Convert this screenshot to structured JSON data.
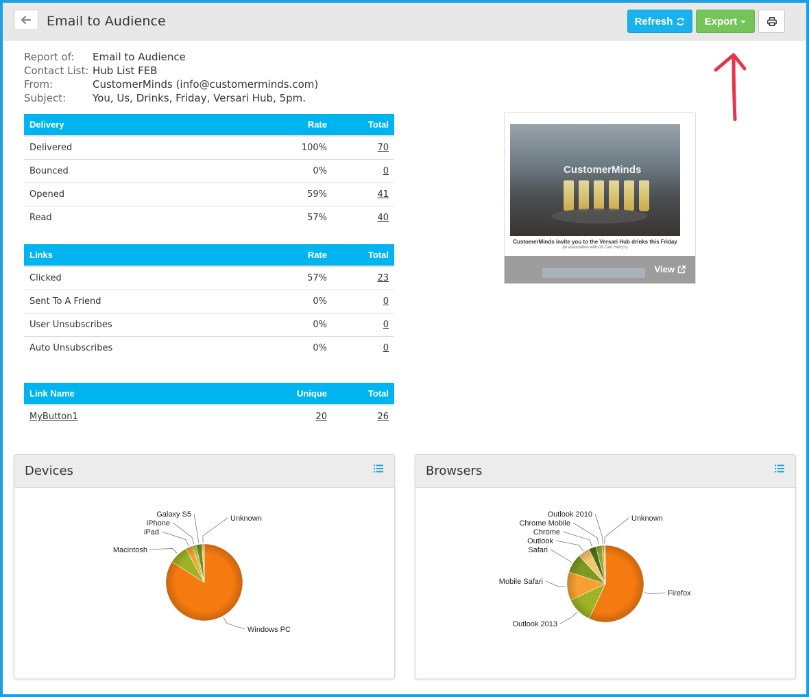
{
  "header": {
    "title": "Email to Audience",
    "refresh_label": "Refresh",
    "export_label": "Export"
  },
  "report": {
    "fields": [
      {
        "label": "Report of:",
        "value": "Email to Audience"
      },
      {
        "label": "Contact List:",
        "value": "Hub List FEB"
      },
      {
        "label": "From:",
        "value": "CustomerMinds (info@customerminds.com)"
      },
      {
        "label": "Subject:",
        "value": "You, Us, Drinks, Friday, Versari Hub, 5pm."
      }
    ]
  },
  "delivery_table": {
    "headers": [
      "Delivery",
      "Rate",
      "Total"
    ],
    "rows": [
      {
        "name": "Delivered",
        "rate": "100%",
        "total": "70"
      },
      {
        "name": "Bounced",
        "rate": "0%",
        "total": "0"
      },
      {
        "name": "Opened",
        "rate": "59%",
        "total": "41"
      },
      {
        "name": "Read",
        "rate": "57%",
        "total": "40"
      }
    ]
  },
  "links_table": {
    "headers": [
      "Links",
      "Rate",
      "Total"
    ],
    "rows": [
      {
        "name": "Clicked",
        "rate": "57%",
        "total": "23"
      },
      {
        "name": "Sent To A Friend",
        "rate": "0%",
        "total": "0"
      },
      {
        "name": "User Unsubscribes",
        "rate": "0%",
        "total": "0"
      },
      {
        "name": "Auto Unsubscribes",
        "rate": "0%",
        "total": "0"
      }
    ]
  },
  "linkname_table": {
    "headers": [
      "Link Name",
      "Unique",
      "Total"
    ],
    "rows": [
      {
        "name": "MyButton1",
        "unique": "20",
        "total": "26"
      }
    ]
  },
  "preview": {
    "brand": "CustomerMinds",
    "caption": "CustomerMinds invite you to the Versari Hub drinks this Friday",
    "subcaption": "(in association with Oli Cart Harry's)",
    "view_label": "View"
  },
  "panels": {
    "devices_title": "Devices",
    "browsers_title": "Browsers"
  },
  "chart_data": [
    {
      "type": "pie",
      "title": "Devices",
      "slices": [
        {
          "label": "Windows PC",
          "value": 84,
          "color": "#f57a10"
        },
        {
          "label": "Macintosh",
          "value": 8,
          "color": "#9db324"
        },
        {
          "label": "iPad",
          "value": 3,
          "color": "#f5a030"
        },
        {
          "label": "iPhone",
          "value": 1.5,
          "color": "#a8c43c"
        },
        {
          "label": "Galaxy S5",
          "value": 2.5,
          "color": "#6f8f1e"
        },
        {
          "label": "Unknown",
          "value": 1,
          "color": "#f7c56b"
        }
      ]
    },
    {
      "type": "pie",
      "title": "Browsers",
      "slices": [
        {
          "label": "Firefox",
          "value": 57,
          "color": "#f57a10"
        },
        {
          "label": "Outlook 2013",
          "value": 11,
          "color": "#9db324"
        },
        {
          "label": "Mobile Safari",
          "value": 12,
          "color": "#f5a030"
        },
        {
          "label": "Safari",
          "value": 8,
          "color": "#7a9a22"
        },
        {
          "label": "Outlook",
          "value": 5,
          "color": "#f7c56b"
        },
        {
          "label": "Chrome",
          "value": 3,
          "color": "#4f6e14"
        },
        {
          "label": "Chrome Mobile",
          "value": 2.5,
          "color": "#8fa83a"
        },
        {
          "label": "Outlook 2010",
          "value": 1,
          "color": "#e7b32e"
        },
        {
          "label": "Unknown",
          "value": 0.5,
          "color": "#c5d46a"
        }
      ]
    }
  ]
}
